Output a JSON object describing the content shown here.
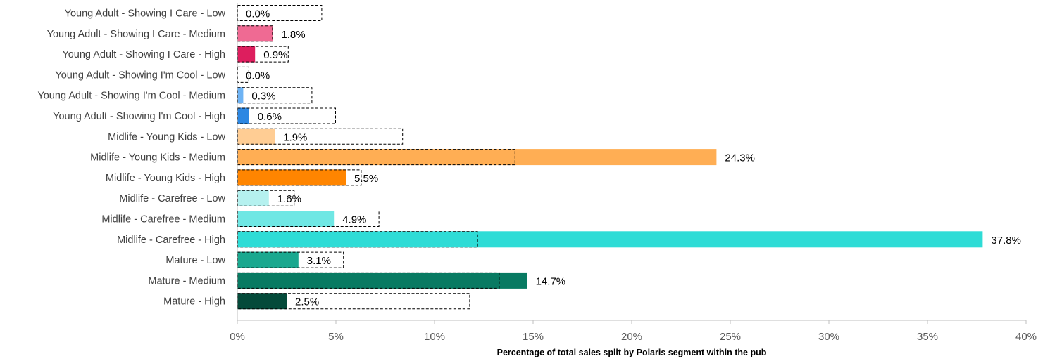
{
  "chart_data": {
    "type": "bar",
    "orientation": "horizontal",
    "xlabel": "Percentage of total sales split by Polaris segment within the pub",
    "xlim": [
      0,
      40
    ],
    "x_ticks": [
      "0%",
      "5%",
      "10%",
      "15%",
      "20%",
      "25%",
      "30%",
      "35%",
      "40%"
    ],
    "x_tick_values": [
      0,
      5,
      10,
      15,
      20,
      25,
      30,
      35,
      40
    ],
    "grid": false,
    "categories": [
      "Young Adult - Showing I Care - Low",
      "Young Adult - Showing I Care - Medium",
      "Young Adult - Showing I Care - High",
      "Young Adult - Showing I'm Cool - Low",
      "Young Adult - Showing I'm Cool - Medium",
      "Young Adult - Showing I'm Cool - High",
      "Midlife - Young Kids - Low",
      "Midlife - Young Kids - Medium",
      "Midlife - Young Kids - High",
      "Midlife - Carefree - Low",
      "Midlife - Carefree - Medium",
      "Midlife - Carefree - High",
      "Mature - Low",
      "Mature - Medium",
      "Mature - High"
    ],
    "values": [
      0.0,
      1.8,
      0.9,
      0.0,
      0.3,
      0.6,
      1.9,
      24.3,
      5.5,
      1.6,
      4.9,
      37.8,
      3.1,
      14.7,
      2.5
    ],
    "value_labels": [
      "0.0%",
      "1.8%",
      "0.9%",
      "0.0%",
      "0.3%",
      "0.6%",
      "1.9%",
      "24.3%",
      "5.5%",
      "1.6%",
      "4.9%",
      "37.8%",
      "3.1%",
      "14.7%",
      "2.5%"
    ],
    "benchmark_values": [
      4.3,
      1.8,
      2.6,
      0.6,
      3.8,
      5.0,
      8.4,
      14.1,
      6.3,
      2.9,
      7.2,
      12.2,
      5.4,
      13.3,
      11.8
    ],
    "colors": [
      "#f4a6c0",
      "#ef6a93",
      "#dd1e5e",
      "#b9dcfb",
      "#6eb3f4",
      "#2d87e2",
      "#ffcd94",
      "#ffae54",
      "#ff8500",
      "#b5f1ef",
      "#6fe7e4",
      "#2edcd6",
      "#1aa88f",
      "#087a62",
      "#044a3a"
    ]
  }
}
